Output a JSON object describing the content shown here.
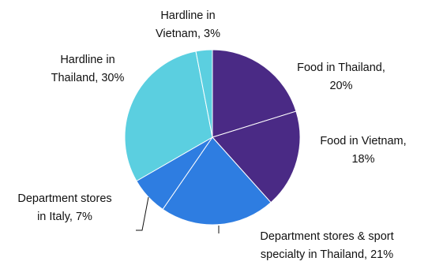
{
  "chart_data": {
    "type": "pie",
    "title": "",
    "unit": "%",
    "slices": [
      {
        "name": "Food in Thailand",
        "value": 20,
        "color": "#4a2a85",
        "label_lines": [
          "Food in Thailand,",
          "20%"
        ]
      },
      {
        "name": "Food in Vietnam",
        "value": 18,
        "color": "#4a2a85",
        "label_lines": [
          "Food in Vietnam,",
          "18%"
        ]
      },
      {
        "name": "Department stores & sport specialty in Thailand",
        "value": 21,
        "color": "#2e7de1",
        "label_lines": [
          "Department stores & sport",
          "specialty in Thailand, 21%"
        ]
      },
      {
        "name": "Department stores in Italy",
        "value": 7,
        "color": "#2e7de1",
        "label_lines": [
          "Department stores",
          "in Italy, 7%"
        ]
      },
      {
        "name": "Hardline in Thailand",
        "value": 30,
        "color": "#5bcfe0",
        "label_lines": [
          "Hardline in",
          "Thailand, 30%"
        ]
      },
      {
        "name": "Hardline in Vietnam",
        "value": 3,
        "color": "#5bcfe0",
        "label_lines": [
          "Hardline in",
          "Vietnam, 3%"
        ]
      }
    ],
    "slice_border_color": "#ffffff",
    "leader_line_color": "#111111"
  }
}
